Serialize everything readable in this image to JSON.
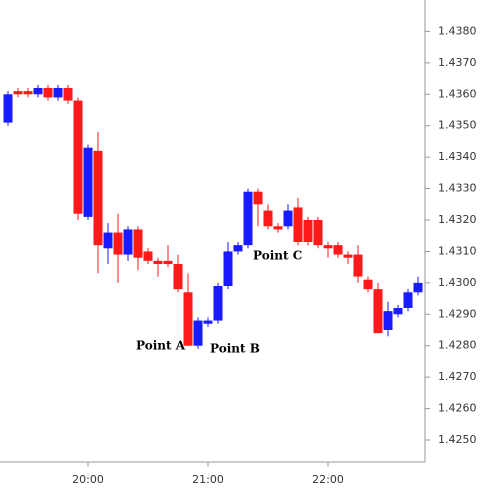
{
  "chart_data": {
    "type": "candlestick",
    "categories": [
      null,
      null,
      null,
      null,
      null,
      null,
      null,
      null,
      "20:00",
      null,
      null,
      null,
      null,
      null,
      null,
      null,
      null,
      null,
      null,
      null,
      "21:00",
      null,
      null,
      null,
      null,
      null,
      null,
      null,
      null,
      null,
      null,
      null,
      "22:00",
      null,
      null,
      null,
      null,
      null,
      null,
      null,
      null,
      null
    ],
    "open": [
      1.4351,
      1.4361,
      1.4361,
      1.436,
      1.4362,
      1.4359,
      1.4362,
      1.4358,
      1.4321,
      1.4342,
      1.4311,
      1.4316,
      1.4309,
      1.4317,
      1.431,
      1.4307,
      1.4307,
      1.4306,
      1.4297,
      1.428,
      1.4287,
      1.4288,
      1.4299,
      1.431,
      1.4312,
      1.4329,
      1.4323,
      1.4318,
      1.4318,
      1.4324,
      1.432,
      1.432,
      1.4312,
      1.4312,
      1.4309,
      1.4309,
      1.4301,
      1.4298,
      1.4285,
      1.429,
      1.4292,
      1.4297
    ],
    "high": [
      1.4361,
      1.4362,
      1.4362,
      1.4363,
      1.4363,
      1.4363,
      1.4363,
      1.4359,
      1.4344,
      1.4348,
      1.4319,
      1.4322,
      1.4318,
      1.4318,
      1.4311,
      1.4308,
      1.4312,
      1.4309,
      1.4303,
      1.4289,
      1.4289,
      1.43,
      1.4313,
      1.4313,
      1.433,
      1.433,
      1.4325,
      1.4319,
      1.4325,
      1.4327,
      1.4321,
      1.4321,
      1.4313,
      1.4313,
      1.431,
      1.4312,
      1.4302,
      1.43,
      1.4294,
      1.4293,
      1.4298,
      1.4302
    ],
    "low": [
      1.435,
      1.4359,
      1.4359,
      1.4359,
      1.4358,
      1.4358,
      1.4357,
      1.432,
      1.432,
      1.4303,
      1.4306,
      1.43,
      1.4307,
      1.4304,
      1.4306,
      1.4302,
      1.4305,
      1.4297,
      1.428,
      1.4279,
      1.4286,
      1.4287,
      1.4298,
      1.4309,
      1.4311,
      1.4318,
      1.4317,
      1.4316,
      1.4317,
      1.4312,
      1.4312,
      1.4311,
      1.4308,
      1.4308,
      1.4306,
      1.43,
      1.4297,
      1.4284,
      1.4283,
      1.4289,
      1.4291,
      1.4296
    ],
    "close": [
      1.436,
      1.436,
      1.436,
      1.4362,
      1.4359,
      1.4362,
      1.4358,
      1.4322,
      1.4343,
      1.4312,
      1.4316,
      1.4309,
      1.4317,
      1.4308,
      1.4307,
      1.4306,
      1.4306,
      1.4298,
      1.428,
      1.4288,
      1.4288,
      1.4299,
      1.431,
      1.4312,
      1.4329,
      1.4325,
      1.4318,
      1.4317,
      1.4323,
      1.4313,
      1.4313,
      1.4312,
      1.4311,
      1.4309,
      1.4308,
      1.4302,
      1.4298,
      1.4284,
      1.4291,
      1.4292,
      1.4297,
      1.43
    ],
    "up_color": "#1a1aff",
    "down_color": "#ff1a1a",
    "ylim": [
      1.4243,
      1.439
    ],
    "yticks": [
      {
        "value": 1.425,
        "label": "1.4250"
      },
      {
        "value": 1.426,
        "label": "1.4260"
      },
      {
        "value": 1.427,
        "label": "1.4270"
      },
      {
        "value": 1.428,
        "label": "1.4280"
      },
      {
        "value": 1.429,
        "label": "1.4290"
      },
      {
        "value": 1.43,
        "label": "1.4300"
      },
      {
        "value": 1.431,
        "label": "1.4310"
      },
      {
        "value": 1.432,
        "label": "1.4320"
      },
      {
        "value": 1.433,
        "label": "1.4330"
      },
      {
        "value": 1.434,
        "label": "1.4340"
      },
      {
        "value": 1.435,
        "label": "1.4350"
      },
      {
        "value": 1.436,
        "label": "1.4360"
      },
      {
        "value": 1.437,
        "label": "1.4370"
      },
      {
        "value": 1.438,
        "label": "1.4380"
      }
    ],
    "annotations": [
      "Point A",
      "Point B",
      "Point C"
    ]
  }
}
